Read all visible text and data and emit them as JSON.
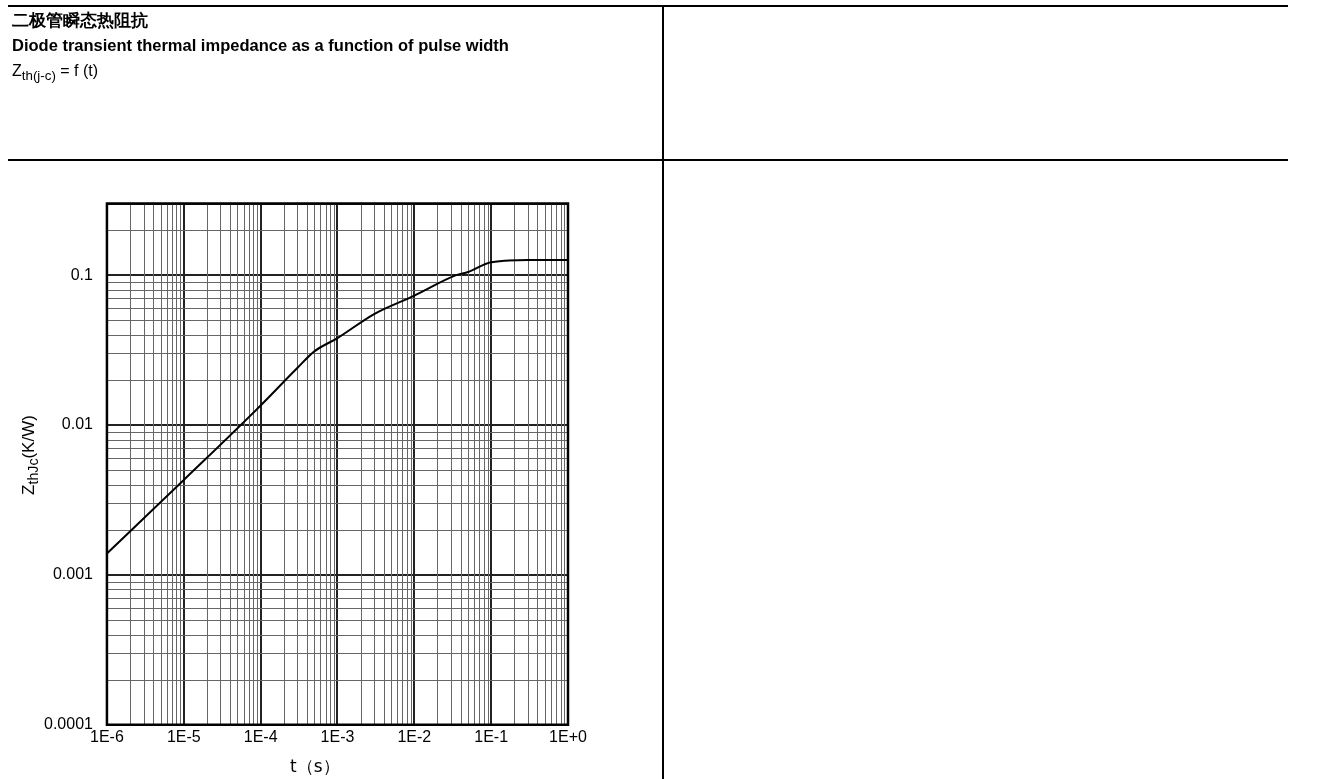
{
  "chart_data": {
    "type": "line",
    "title": "二极管瞬态热阻抗",
    "subtitle": "Diode transient thermal impedance as a function of pulse width",
    "annotations": [
      "Z$_{th(j-c)}$ = f (t)"
    ],
    "xlabel": "t（s）",
    "ylabel": "Z$_{thJc}$(K/W)",
    "x": [
      1e-06,
      1e-05,
      0.0001,
      0.0003,
      0.0005,
      0.001,
      0.003,
      0.01,
      0.035,
      0.05,
      0.1,
      0.3,
      1
    ],
    "series": [
      {
        "color": "#000000",
        "values": [
          0.00139,
          0.0043,
          0.0135,
          0.024,
          0.031,
          0.038,
          0.055,
          0.073,
          0.1,
          0.105,
          0.122,
          0.126,
          0.126
        ]
      }
    ],
    "log": "xy",
    "grid": true,
    "legend": false,
    "marker": "none",
    "line_style": "solid",
    "xlim": [
      1e-06,
      1
    ],
    "ylim": [
      0.0001,
      0.3
    ],
    "xticks": [
      {
        "value": 1e-06,
        "label": "1E-6"
      },
      {
        "value": 1e-05,
        "label": "1E-5"
      },
      {
        "value": 0.0001,
        "label": "1E-4"
      },
      {
        "value": 0.001,
        "label": "1E-3"
      },
      {
        "value": 0.01,
        "label": "1E-2"
      },
      {
        "value": 0.1,
        "label": "1E-1"
      },
      {
        "value": 1,
        "label": "1E+0"
      }
    ],
    "yticks": [
      0.0001,
      0.001,
      0.01,
      0.1,
      {
        "value": 0.3,
        "label": null
      }
    ]
  }
}
